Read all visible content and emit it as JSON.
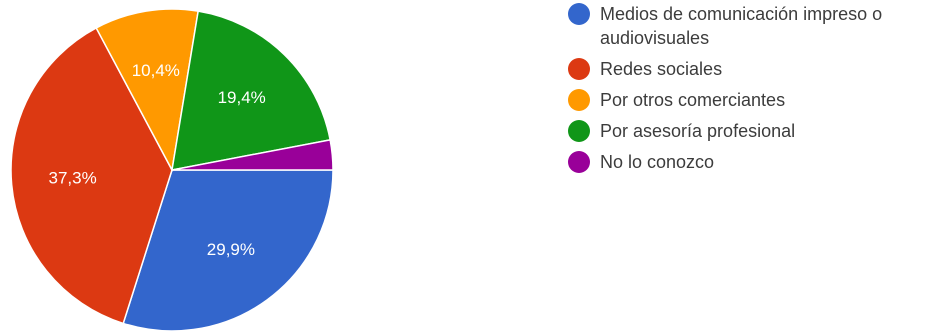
{
  "chart_data": {
    "type": "pie",
    "categories": [
      "Medios de comunicación impreso o audiovisuales",
      "Redes sociales",
      "Por otros comerciantes",
      "Por asesoría profesional",
      "No lo conozco"
    ],
    "values": [
      29.9,
      37.3,
      10.4,
      19.4,
      3.0
    ],
    "value_labels": [
      "29,9%",
      "37,3%",
      "10,4%",
      "19,4%",
      ""
    ],
    "colors": [
      "#3366cc",
      "#dc3912",
      "#ff9900",
      "#109618",
      "#990099"
    ],
    "start_angle_deg": 90,
    "direction": "clockwise",
    "legend_position": "right"
  }
}
